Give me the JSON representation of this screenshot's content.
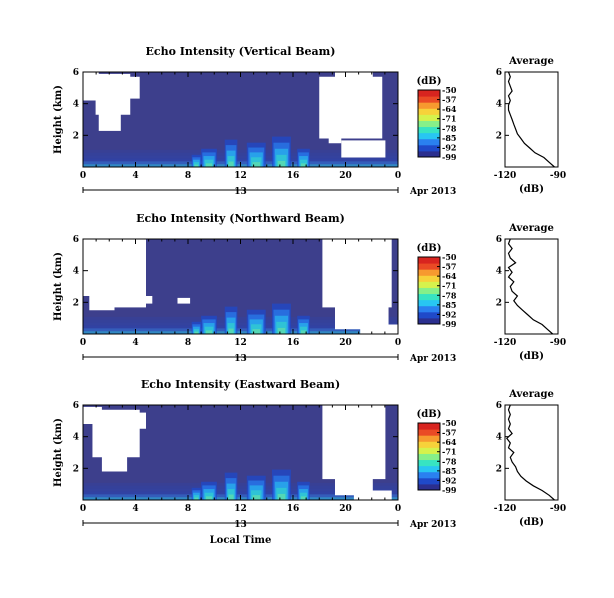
{
  "colormap": [
    "#2b2f8f",
    "#1f49c9",
    "#2a80f0",
    "#28c6f2",
    "#37e4c2",
    "#86f089",
    "#d6f24c",
    "#f7d23a",
    "#f79a2f",
    "#ea4a25",
    "#d8241f"
  ],
  "background_color": "#3d3f8c",
  "chart_data": [
    {
      "type": "heatmap",
      "title": "Echo Intensity (Vertical Beam)",
      "ylabel": "Height (km)",
      "xlabel": "",
      "x_ticks": [
        "0",
        "4",
        "8",
        "12",
        "16",
        "20",
        "0"
      ],
      "y_ticks": [
        "2",
        "4",
        "6"
      ],
      "xlim": [
        0,
        24
      ],
      "ylim": [
        0,
        6
      ],
      "date_label": "13",
      "month_label": "Apr 2013",
      "colorbar": {
        "unit": "(dB)",
        "ticks": [
          "-50",
          "-57",
          "-64",
          "-71",
          "-78",
          "-85",
          "-92",
          "-99"
        ],
        "range": [
          -99,
          -50
        ]
      },
      "average_panel": {
        "title": "Average",
        "xlabel": "(dB)",
        "x_ticks": [
          "-120",
          "-90"
        ],
        "y_ticks": [
          "2",
          "4",
          "6"
        ],
        "xlim": [
          -120,
          -90
        ],
        "profile": [
          [
            -92,
            0.0
          ],
          [
            -95,
            0.3
          ],
          [
            -98,
            0.6
          ],
          [
            -103,
            0.9
          ],
          [
            -106,
            1.2
          ],
          [
            -109,
            1.5
          ],
          [
            -111,
            1.8
          ],
          [
            -113,
            2.1
          ],
          [
            -114,
            2.4
          ],
          [
            -115,
            2.7
          ],
          [
            -116,
            3.0
          ],
          [
            -117,
            3.3
          ],
          [
            -118,
            3.6
          ],
          [
            -118,
            3.9
          ],
          [
            -117,
            4.2
          ],
          [
            -118,
            4.5
          ],
          [
            -116,
            4.8
          ],
          [
            -117,
            5.1
          ],
          [
            -118,
            5.4
          ],
          [
            -117,
            5.7
          ],
          [
            -118,
            6.0
          ]
        ]
      }
    },
    {
      "type": "heatmap",
      "title": "Echo Intensity (Northward Beam)",
      "ylabel": "Height (km)",
      "xlabel": "",
      "x_ticks": [
        "0",
        "4",
        "8",
        "12",
        "16",
        "20",
        "0"
      ],
      "y_ticks": [
        "2",
        "4",
        "6"
      ],
      "xlim": [
        0,
        24
      ],
      "ylim": [
        0,
        6
      ],
      "date_label": "13",
      "month_label": "Apr 2013",
      "colorbar": {
        "unit": "(dB)",
        "ticks": [
          "-50",
          "-57",
          "-64",
          "-71",
          "-78",
          "-85",
          "-92",
          "-99"
        ],
        "range": [
          -99,
          -50
        ]
      },
      "average_panel": {
        "title": "Average",
        "xlabel": "(dB)",
        "x_ticks": [
          "-120",
          "-90"
        ],
        "y_ticks": [
          "2",
          "4",
          "6"
        ],
        "xlim": [
          -120,
          -90
        ],
        "profile": [
          [
            -93,
            0.0
          ],
          [
            -96,
            0.3
          ],
          [
            -99,
            0.6
          ],
          [
            -104,
            0.9
          ],
          [
            -107,
            1.2
          ],
          [
            -110,
            1.5
          ],
          [
            -113,
            1.8
          ],
          [
            -115,
            2.1
          ],
          [
            -113,
            2.4
          ],
          [
            -116,
            2.7
          ],
          [
            -117,
            3.0
          ],
          [
            -115,
            3.3
          ],
          [
            -118,
            3.6
          ],
          [
            -116,
            3.9
          ],
          [
            -118,
            4.2
          ],
          [
            -114,
            4.5
          ],
          [
            -117,
            4.8
          ],
          [
            -118,
            5.1
          ],
          [
            -116,
            5.4
          ],
          [
            -118,
            5.7
          ],
          [
            -117,
            6.0
          ]
        ]
      }
    },
    {
      "type": "heatmap",
      "title": "Echo Intensity (Eastward Beam)",
      "ylabel": "Height (km)",
      "xlabel": "Local Time",
      "x_ticks": [
        "0",
        "4",
        "8",
        "12",
        "16",
        "20",
        "0"
      ],
      "y_ticks": [
        "2",
        "4",
        "6"
      ],
      "xlim": [
        0,
        24
      ],
      "ylim": [
        0,
        6
      ],
      "date_label": "13",
      "month_label": "Apr 2013",
      "colorbar": {
        "unit": "(dB)",
        "ticks": [
          "-50",
          "-57",
          "-64",
          "-71",
          "-78",
          "-85",
          "-92",
          "-99"
        ],
        "range": [
          -99,
          -50
        ]
      },
      "average_panel": {
        "title": "Average",
        "xlabel": "(dB)",
        "x_ticks": [
          "-120",
          "-90"
        ],
        "y_ticks": [
          "2",
          "4",
          "6"
        ],
        "xlim": [
          -120,
          -90
        ],
        "profile": [
          [
            -92,
            0.0
          ],
          [
            -95,
            0.3
          ],
          [
            -99,
            0.6
          ],
          [
            -104,
            0.9
          ],
          [
            -108,
            1.2
          ],
          [
            -111,
            1.5
          ],
          [
            -113,
            1.8
          ],
          [
            -114,
            2.1
          ],
          [
            -116,
            2.4
          ],
          [
            -117,
            2.7
          ],
          [
            -115,
            3.0
          ],
          [
            -118,
            3.3
          ],
          [
            -117,
            3.6
          ],
          [
            -119,
            3.9
          ],
          [
            -116,
            4.2
          ],
          [
            -118,
            4.5
          ],
          [
            -117,
            4.8
          ],
          [
            -118,
            5.1
          ],
          [
            -117,
            5.4
          ],
          [
            -118,
            5.7
          ],
          [
            -117,
            6.0
          ]
        ]
      }
    }
  ]
}
